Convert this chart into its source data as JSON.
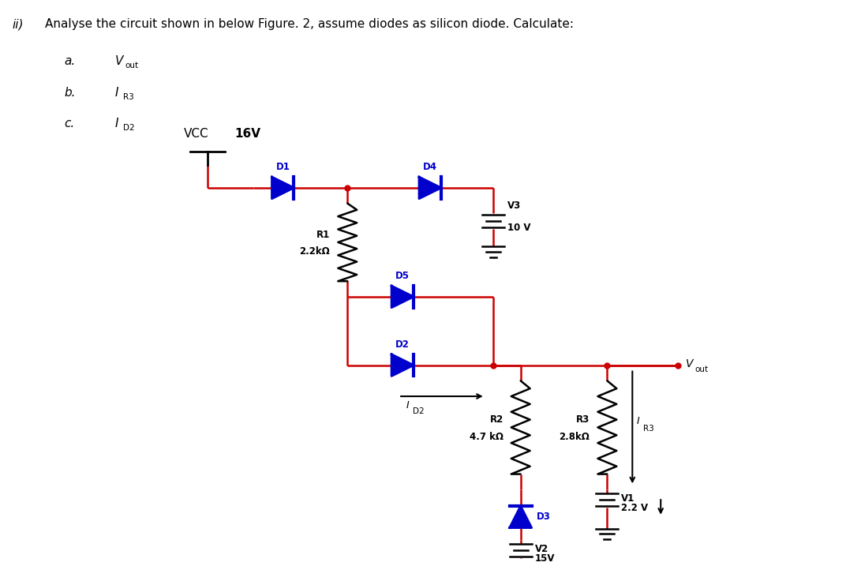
{
  "title_ii": "ii)",
  "title_main": "Analyse the circuit shown in below Figure. 2, assume diodes as silicon diode. Calculate:",
  "items": [
    {
      "label": "a.",
      "text": "V",
      "subscript": "out"
    },
    {
      "label": "b.",
      "text": "I",
      "subscript": "R3"
    },
    {
      "label": "c.",
      "text": "I",
      "subscript": "D2"
    }
  ],
  "vcc_label_normal": "VCC",
  "vcc_label_bold": "16V",
  "wire_color": "#cc0000",
  "diode_color": "#0000cc",
  "text_color": "#000000",
  "bg_color": "#ffffff",
  "components": {
    "R1": {
      "label": "R1",
      "value": "2.2kΩ"
    },
    "R2": {
      "label": "R2",
      "value": "4.7 kΩ"
    },
    "R3": {
      "label": "R3",
      "value": "2.8kΩ"
    },
    "V1": {
      "label": "V1",
      "value": "2.2 V"
    },
    "V2": {
      "label": "V2",
      "value": "15V"
    },
    "V3": {
      "label": "V3",
      "value": "10 V"
    }
  }
}
